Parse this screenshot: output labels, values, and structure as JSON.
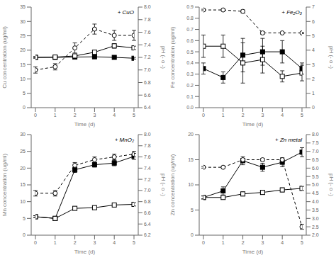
{
  "chart_data": [
    {
      "type": "line",
      "x": [
        0,
        1,
        2,
        3,
        4,
        5
      ],
      "xlim": [
        0,
        5
      ],
      "xticks": [
        0,
        1,
        2,
        3,
        4,
        5
      ],
      "xlabel": "Time (d)",
      "ylabel": "Cu concentration (ug/ml)",
      "y2label": "pH (- o -)",
      "annotation": "+ CuO",
      "grid": false,
      "ylim": [
        0,
        35
      ],
      "yticks": [
        0,
        5,
        10,
        15,
        20,
        25,
        30,
        35
      ],
      "y2lim": [
        6.4,
        8.0
      ],
      "y2ticks": [
        6.4,
        6.6,
        6.8,
        {
          "value": 7,
          "label": "7.0"
        },
        7.2,
        7.4,
        7.6,
        7.8,
        {
          "value": 8,
          "label": "8.0"
        }
      ],
      "series": [
        {
          "color": "#000000",
          "marker": "square",
          "line_style": "solid",
          "values": [
            17.5,
            17.5,
            17.6,
            17.7,
            17.5,
            17.2
          ],
          "errors": [
            0.2,
            0.2,
            0.2,
            0.2,
            0.3,
            0.3
          ]
        },
        {
          "color": "#000000",
          "marker": "open_square",
          "line_style": "solid",
          "values": [
            17.5,
            17.6,
            18.0,
            19.3,
            21.5,
            20.8
          ],
          "errors": [
            0.3,
            0.3,
            0.4,
            0.5,
            0.8,
            0.6
          ]
        },
        {
          "color": "#000000",
          "marker": "open_circle",
          "line_style": "dashed",
          "axis": "y2",
          "values": [
            7.0,
            7.05,
            7.35,
            7.65,
            7.55,
            7.55
          ],
          "errors": [
            0.05,
            0.05,
            0.08,
            0.08,
            0.08,
            0.08
          ]
        }
      ]
    },
    {
      "type": "line",
      "x": [
        0,
        1,
        2,
        3,
        4,
        5
      ],
      "xlim": [
        0,
        5
      ],
      "xticks": [
        0,
        1,
        2,
        3,
        4,
        5
      ],
      "xlabel": "Time (d)",
      "ylabel": "Fe concentration (ug/ml)",
      "y2label": "pH (- o -)",
      "annotation": "+ Fe₂O₃",
      "grid": false,
      "ylim": [
        0,
        0.9
      ],
      "yticks": [
        {
          "value": 0,
          "label": "0.0"
        },
        0.1,
        0.2,
        0.3,
        0.4,
        0.5,
        0.6,
        0.7,
        0.8,
        0.9
      ],
      "y2lim": [
        0,
        7
      ],
      "y2ticks": [
        0,
        1,
        2,
        3,
        4,
        5,
        6,
        7
      ],
      "series": [
        {
          "color": "#000000",
          "marker": "square",
          "line_style": "solid",
          "values": [
            0.35,
            0.27,
            0.47,
            0.5,
            0.5,
            0.35
          ],
          "errors": [
            0.05,
            0.05,
            0.15,
            0.12,
            0.1,
            0.05
          ]
        },
        {
          "color": "#000000",
          "marker": "open_square",
          "line_style": "solid",
          "values": [
            0.55,
            0.55,
            0.4,
            0.43,
            0.28,
            0.31
          ],
          "errors": [
            0.1,
            0.1,
            0.18,
            0.12,
            0.05,
            0.07
          ]
        },
        {
          "color": "#000000",
          "marker": "open_circle",
          "line_style": "dashed",
          "axis": "y2",
          "values": [
            6.8,
            6.8,
            6.7,
            5.2,
            5.2,
            5.2
          ],
          "errors": [
            0.05,
            0.05,
            0.1,
            0.1,
            0.05,
            0.05
          ]
        }
      ]
    },
    {
      "type": "line",
      "x": [
        0,
        1,
        2,
        3,
        4,
        5
      ],
      "xlim": [
        0,
        5
      ],
      "xticks": [
        0,
        1,
        2,
        3,
        4,
        5
      ],
      "xlabel": "Time (d)",
      "ylabel": "Mn concentration (ug/ml)",
      "y2label": "pH (- o -)",
      "annotation": "+ MnO₂",
      "grid": false,
      "ylim": [
        0,
        30
      ],
      "yticks": [
        0,
        5,
        10,
        15,
        20,
        25,
        30
      ],
      "y2lim": [
        6.2,
        8.0
      ],
      "y2ticks": [
        6.2,
        6.4,
        6.6,
        6.8,
        {
          "value": 7,
          "label": "7.0"
        },
        7.2,
        7.4,
        7.6,
        7.8,
        {
          "value": 8,
          "label": "8.0"
        }
      ],
      "series": [
        {
          "color": "#000000",
          "marker": "square",
          "line_style": "solid",
          "values": [
            5.5,
            5.0,
            19.5,
            21.0,
            21.5,
            23.5
          ],
          "errors": [
            0.3,
            0.3,
            0.8,
            0.7,
            0.8,
            0.9
          ]
        },
        {
          "color": "#000000",
          "marker": "open_square",
          "line_style": "solid",
          "values": [
            5.5,
            5.0,
            8.0,
            8.2,
            9.0,
            9.2
          ],
          "errors": [
            0.3,
            0.3,
            0.4,
            0.4,
            0.5,
            0.5
          ]
        },
        {
          "color": "#000000",
          "marker": "open_circle",
          "line_style": "dashed",
          "axis": "y2",
          "values": [
            6.95,
            6.95,
            7.45,
            7.55,
            7.6,
            7.65
          ],
          "errors": [
            0.05,
            0.05,
            0.05,
            0.05,
            0.05,
            0.05
          ]
        }
      ]
    },
    {
      "type": "line",
      "x": [
        0,
        1,
        2,
        3,
        4,
        5
      ],
      "xlim": [
        0,
        5
      ],
      "xticks": [
        0,
        1,
        2,
        3,
        4,
        5
      ],
      "xlabel": "Time (d)",
      "ylabel": "Zn concentration (ug/ml)",
      "y2label": "pH (- o -)",
      "annotation": "+ Zn metal",
      "grid": false,
      "ylim": [
        0,
        20
      ],
      "yticks": [
        0,
        5,
        10,
        15,
        20
      ],
      "y2lim": [
        2.0,
        8.0
      ],
      "y2ticks": [
        {
          "value": 2,
          "label": "2.0"
        },
        2.5,
        {
          "value": 3,
          "label": "3.0"
        },
        3.5,
        {
          "value": 4,
          "label": "4.0"
        },
        4.5,
        {
          "value": 5,
          "label": "5.0"
        },
        5.5,
        {
          "value": 6,
          "label": "6.0"
        },
        6.5,
        {
          "value": 7,
          "label": "7.0"
        },
        7.5,
        {
          "value": 8,
          "label": "8.0"
        }
      ],
      "series": [
        {
          "color": "#000000",
          "marker": "square",
          "line_style": "solid",
          "values": [
            7.5,
            8.8,
            14.8,
            13.5,
            14.5,
            16.5
          ],
          "errors": [
            0.3,
            0.8,
            0.8,
            0.8,
            0.9,
            0.9
          ]
        },
        {
          "color": "#000000",
          "marker": "open_square",
          "line_style": "solid",
          "values": [
            7.5,
            7.5,
            8.2,
            8.5,
            9.0,
            9.3
          ],
          "errors": [
            0.3,
            0.3,
            0.4,
            0.4,
            0.4,
            0.4
          ]
        },
        {
          "color": "#000000",
          "marker": "open_circle",
          "line_style": "dashed",
          "axis": "y2",
          "values": [
            6.05,
            6.05,
            6.5,
            6.5,
            6.5,
            2.5
          ],
          "errors": [
            0.05,
            0.05,
            0.08,
            0.08,
            0.08,
            0.15
          ]
        }
      ]
    }
  ]
}
